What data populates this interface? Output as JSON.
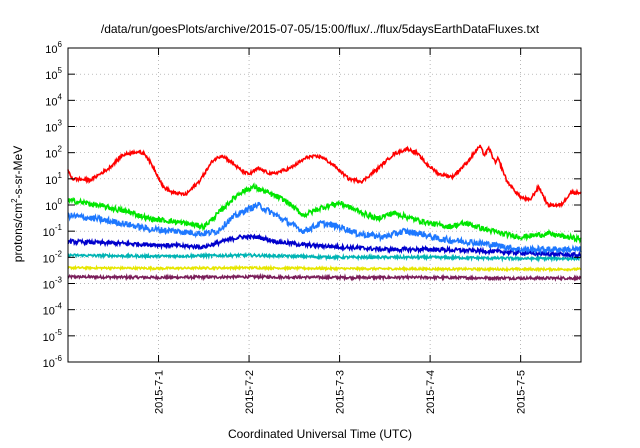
{
  "chart_data": {
    "type": "line",
    "title": "/data/run/goesPlots/archive/2015-07-05/15:00/flux/../flux/5daysEarthDataFluxes.txt",
    "xlabel": "Coordinated Universal Time (UTC)",
    "ylabel": {
      "prefix": "protons/cm",
      "exp": "2",
      "suffix": "-s-sr-MeV"
    },
    "y_scale": "log",
    "ylim": [
      1e-06,
      1000000.0
    ],
    "xlim": [
      "2015-06-30 00:00",
      "2015-07-05 16:00"
    ],
    "grid": true,
    "y_ticks": [
      {
        "base": "10",
        "exp": "-6",
        "value": 1e-06
      },
      {
        "base": "10",
        "exp": "-5",
        "value": 1e-05
      },
      {
        "base": "10",
        "exp": "-4",
        "value": 0.0001
      },
      {
        "base": "10",
        "exp": "-3",
        "value": 0.001
      },
      {
        "base": "10",
        "exp": "-2",
        "value": 0.01
      },
      {
        "base": "10",
        "exp": "-1",
        "value": 0.1
      },
      {
        "base": "10",
        "exp": "0",
        "value": 1
      },
      {
        "base": "10",
        "exp": "1",
        "value": 10
      },
      {
        "base": "10",
        "exp": "2",
        "value": 100
      },
      {
        "base": "10",
        "exp": "3",
        "value": 1000
      },
      {
        "base": "10",
        "exp": "4",
        "value": 10000
      },
      {
        "base": "10",
        "exp": "5",
        "value": 100000
      },
      {
        "base": "10",
        "exp": "6",
        "value": 1000000
      }
    ],
    "x_ticks": [
      {
        "label": "2015-7-1",
        "day": 1
      },
      {
        "label": "2015-7-2",
        "day": 2
      },
      {
        "label": "2015-7-3",
        "day": 3
      },
      {
        "label": "2015-7-4",
        "day": 4
      },
      {
        "label": "2015-7-5",
        "day": 5
      }
    ],
    "series": [
      {
        "color": "#ff0000",
        "noise": 0.06,
        "points": [
          [
            0,
            20
          ],
          [
            0.05,
            10
          ],
          [
            0.25,
            9
          ],
          [
            0.45,
            25
          ],
          [
            0.6,
            80
          ],
          [
            0.75,
            110
          ],
          [
            0.85,
            90
          ],
          [
            0.95,
            25
          ],
          [
            1.05,
            5
          ],
          [
            1.15,
            3
          ],
          [
            1.3,
            2.5
          ],
          [
            1.45,
            8
          ],
          [
            1.6,
            50
          ],
          [
            1.7,
            80
          ],
          [
            1.8,
            45
          ],
          [
            1.92,
            20
          ],
          [
            2.0,
            15
          ],
          [
            2.1,
            25
          ],
          [
            2.25,
            15
          ],
          [
            2.45,
            25
          ],
          [
            2.65,
            70
          ],
          [
            2.8,
            70
          ],
          [
            2.95,
            30
          ],
          [
            3.1,
            10
          ],
          [
            3.25,
            8
          ],
          [
            3.45,
            30
          ],
          [
            3.6,
            90
          ],
          [
            3.75,
            140
          ],
          [
            3.85,
            100
          ],
          [
            3.95,
            40
          ],
          [
            4.1,
            15
          ],
          [
            4.25,
            12
          ],
          [
            4.4,
            40
          ],
          [
            4.55,
            180
          ],
          [
            4.6,
            80
          ],
          [
            4.65,
            150
          ],
          [
            4.72,
            40
          ],
          [
            4.75,
            60
          ],
          [
            4.85,
            8
          ],
          [
            4.92,
            4
          ],
          [
            5.0,
            2
          ],
          [
            5.1,
            1.5
          ],
          [
            5.2,
            5
          ],
          [
            5.3,
            1
          ],
          [
            5.45,
            1
          ],
          [
            5.55,
            3
          ],
          [
            5.65,
            3
          ]
        ]
      },
      {
        "color": "#00e600",
        "noise": 0.1,
        "points": [
          [
            0,
            1.5
          ],
          [
            0.2,
            1.2
          ],
          [
            0.45,
            0.8
          ],
          [
            0.7,
            0.5
          ],
          [
            0.9,
            0.3
          ],
          [
            1.1,
            0.25
          ],
          [
            1.3,
            0.2
          ],
          [
            1.5,
            0.15
          ],
          [
            1.6,
            0.3
          ],
          [
            1.75,
            1
          ],
          [
            1.9,
            3
          ],
          [
            2.05,
            5
          ],
          [
            2.2,
            3
          ],
          [
            2.4,
            1.5
          ],
          [
            2.6,
            0.4
          ],
          [
            2.8,
            0.8
          ],
          [
            3.0,
            1.2
          ],
          [
            3.2,
            0.6
          ],
          [
            3.4,
            0.3
          ],
          [
            3.6,
            0.5
          ],
          [
            3.8,
            0.3
          ],
          [
            4.0,
            0.2
          ],
          [
            4.2,
            0.15
          ],
          [
            4.4,
            0.2
          ],
          [
            4.6,
            0.12
          ],
          [
            4.8,
            0.08
          ],
          [
            5.0,
            0.06
          ],
          [
            5.3,
            0.08
          ],
          [
            5.65,
            0.05
          ]
        ]
      },
      {
        "color": "#1e78ff",
        "noise": 0.12,
        "points": [
          [
            0,
            0.4
          ],
          [
            0.3,
            0.3
          ],
          [
            0.6,
            0.2
          ],
          [
            0.9,
            0.12
          ],
          [
            1.2,
            0.1
          ],
          [
            1.5,
            0.08
          ],
          [
            1.65,
            0.1
          ],
          [
            1.8,
            0.3
          ],
          [
            1.95,
            0.6
          ],
          [
            2.1,
            1
          ],
          [
            2.25,
            0.5
          ],
          [
            2.45,
            0.2
          ],
          [
            2.6,
            0.1
          ],
          [
            2.8,
            0.2
          ],
          [
            3.0,
            0.15
          ],
          [
            3.2,
            0.08
          ],
          [
            3.5,
            0.06
          ],
          [
            3.7,
            0.1
          ],
          [
            3.9,
            0.08
          ],
          [
            4.1,
            0.05
          ],
          [
            4.4,
            0.04
          ],
          [
            4.7,
            0.03
          ],
          [
            5.0,
            0.02
          ],
          [
            5.3,
            0.02
          ],
          [
            5.65,
            0.02
          ]
        ]
      },
      {
        "color": "#0000cc",
        "noise": 0.08,
        "points": [
          [
            0,
            0.04
          ],
          [
            0.5,
            0.035
          ],
          [
            1.0,
            0.03
          ],
          [
            1.5,
            0.025
          ],
          [
            1.7,
            0.04
          ],
          [
            1.9,
            0.06
          ],
          [
            2.1,
            0.06
          ],
          [
            2.3,
            0.04
          ],
          [
            2.6,
            0.03
          ],
          [
            3.0,
            0.025
          ],
          [
            3.5,
            0.02
          ],
          [
            4.0,
            0.02
          ],
          [
            4.5,
            0.018
          ],
          [
            5.0,
            0.015
          ],
          [
            5.65,
            0.012
          ]
        ]
      },
      {
        "color": "#00b4b4",
        "noise": 0.05,
        "points": [
          [
            0,
            0.012
          ],
          [
            1.0,
            0.011
          ],
          [
            2.0,
            0.012
          ],
          [
            3.0,
            0.01
          ],
          [
            4.0,
            0.01
          ],
          [
            5.0,
            0.009
          ],
          [
            5.65,
            0.009
          ]
        ]
      },
      {
        "color": "#e6e600",
        "noise": 0.04,
        "points": [
          [
            0,
            0.004
          ],
          [
            1.0,
            0.0038
          ],
          [
            2.0,
            0.004
          ],
          [
            3.0,
            0.0037
          ],
          [
            4.0,
            0.0036
          ],
          [
            5.0,
            0.0035
          ],
          [
            5.65,
            0.0035
          ]
        ]
      },
      {
        "color": "#7a1e5a",
        "noise": 0.05,
        "points": [
          [
            0,
            0.0018
          ],
          [
            1.0,
            0.0017
          ],
          [
            2.0,
            0.0018
          ],
          [
            3.0,
            0.0017
          ],
          [
            4.0,
            0.0017
          ],
          [
            5.0,
            0.0016
          ],
          [
            5.65,
            0.0016
          ]
        ]
      }
    ]
  }
}
